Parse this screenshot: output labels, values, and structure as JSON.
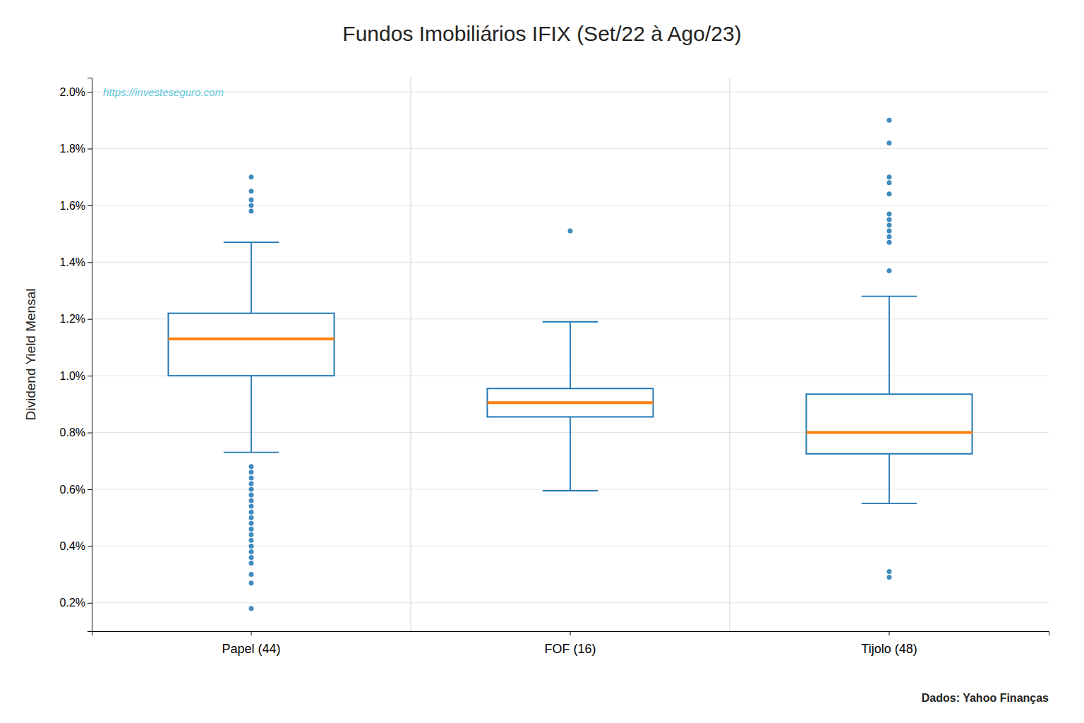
{
  "chart_data": {
    "type": "box",
    "title": "Fundos Imobiliários IFIX (Set/22 à Ago/23)",
    "ylabel": "Dividend Yield Mensal",
    "categories": [
      "Papel (44)",
      "FOF (16)",
      "Tijolo (48)"
    ],
    "stats": [
      {
        "q1": 1.0,
        "median": 1.13,
        "q3": 1.22,
        "whisker_low": 0.73,
        "whisker_high": 1.47,
        "outliers": [
          0.18,
          0.27,
          0.3,
          0.34,
          0.36,
          0.38,
          0.4,
          0.42,
          0.44,
          0.46,
          0.48,
          0.5,
          0.52,
          0.54,
          0.56,
          0.58,
          0.6,
          0.62,
          0.64,
          0.66,
          0.68,
          1.58,
          1.6,
          1.62,
          1.65,
          1.7
        ]
      },
      {
        "q1": 0.855,
        "median": 0.905,
        "q3": 0.955,
        "whisker_low": 0.595,
        "whisker_high": 1.19,
        "outliers": [
          1.51
        ]
      },
      {
        "q1": 0.725,
        "median": 0.8,
        "q3": 0.935,
        "whisker_low": 0.55,
        "whisker_high": 1.28,
        "outliers": [
          0.29,
          0.31,
          1.37,
          1.47,
          1.49,
          1.51,
          1.53,
          1.55,
          1.57,
          1.64,
          1.68,
          1.7,
          1.82,
          1.9
        ]
      }
    ],
    "ylim": [
      0.1,
      2.05
    ],
    "yticks": [
      {
        "value": 0.2,
        "label": "0.2%"
      },
      {
        "value": 0.4,
        "label": "0.4%"
      },
      {
        "value": 0.6,
        "label": "0.6%"
      },
      {
        "value": 0.8,
        "label": "0.8%"
      },
      {
        "value": 1.0,
        "label": "1.0%"
      },
      {
        "value": 1.2,
        "label": "1.2%"
      },
      {
        "value": 1.4,
        "label": "1.4%"
      },
      {
        "value": 1.6,
        "label": "1.6%"
      },
      {
        "value": 1.8,
        "label": "1.8%"
      },
      {
        "value": 2.0,
        "label": "2.0%"
      }
    ],
    "grid": true,
    "annotations": [
      {
        "text": "https://investeseguro.com",
        "color": "#5bc8d8"
      },
      {
        "text": "Dados: Yahoo Finanças"
      }
    ]
  }
}
